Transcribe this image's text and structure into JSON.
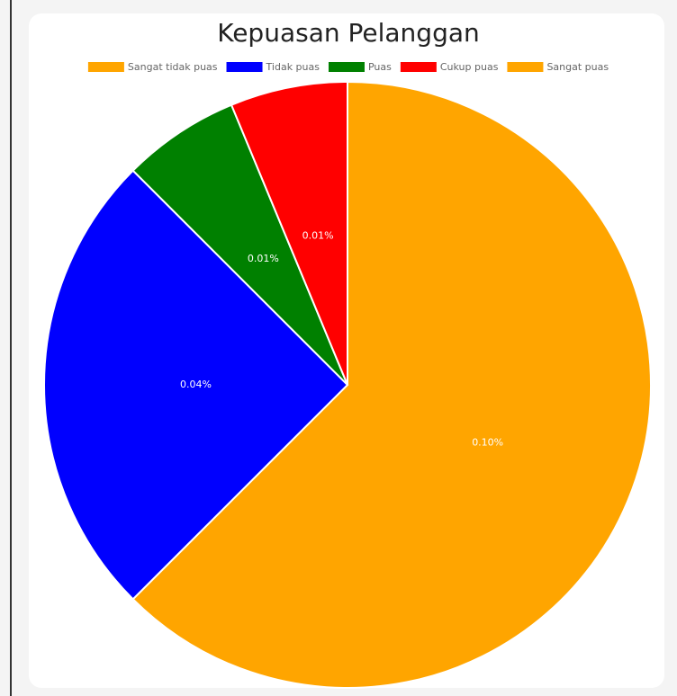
{
  "chart_data": {
    "type": "pie",
    "title": "Kepuasan Pelanggan",
    "categories": [
      "Sangat tidak puas",
      "Tidak puas",
      "Puas",
      "Cukup puas",
      "Sangat puas"
    ],
    "values": [
      0.1,
      0.04,
      0.01,
      0.01,
      0
    ],
    "value_labels": [
      "0.10%",
      "0.04%",
      "0.01%",
      "0.01%",
      null
    ],
    "colors": [
      "#ffa500",
      "#0000ff",
      "#008000",
      "#ff0000",
      "#ffa500"
    ],
    "legend": "top"
  }
}
